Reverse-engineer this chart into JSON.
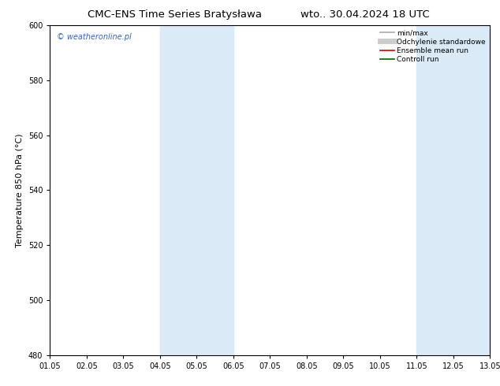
{
  "title_left": "CMC-ENS Time Series Bratysława",
  "title_right": "wto.. 30.04.2024 18 UTC",
  "ylabel": "Temperature 850 hPa (°C)",
  "ylim": [
    480,
    600
  ],
  "yticks": [
    480,
    500,
    520,
    540,
    560,
    580,
    600
  ],
  "xlim_start": 0,
  "xlim_end": 12,
  "xtick_labels": [
    "01.05",
    "02.05",
    "03.05",
    "04.05",
    "05.05",
    "06.05",
    "07.05",
    "08.05",
    "09.05",
    "10.05",
    "11.05",
    "12.05",
    "13.05"
  ],
  "shaded_bands": [
    {
      "x_start": 3.0,
      "x_end": 5.0
    },
    {
      "x_start": 10.0,
      "x_end": 12.0
    }
  ],
  "shade_color": "#daeaf7",
  "background_color": "#ffffff",
  "watermark": "© weatheronline.pl",
  "watermark_color": "#3366bb",
  "legend_items": [
    {
      "label": "min/max",
      "color": "#aaaaaa",
      "lw": 1.2
    },
    {
      "label": "Odchylenie standardowe",
      "color": "#cccccc",
      "lw": 5
    },
    {
      "label": "Ensemble mean run",
      "color": "#cc0000",
      "lw": 1.2
    },
    {
      "label": "Controll run",
      "color": "#006600",
      "lw": 1.2
    }
  ],
  "title_fontsize": 9.5,
  "axis_label_fontsize": 8,
  "tick_fontsize": 7,
  "watermark_fontsize": 7,
  "legend_fontsize": 6.5
}
